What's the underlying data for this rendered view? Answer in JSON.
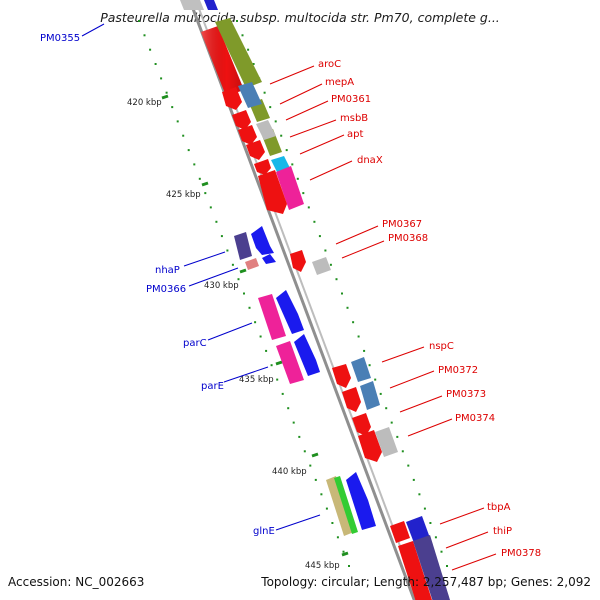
{
  "title": "Pasteurella multocida subsp. multocida str. Pm70, complete g...",
  "footer": {
    "accession_label": "Accession:",
    "accession": "NC_002663",
    "topology_label": "Topology:",
    "topology": "circular;",
    "length_label": "Length:",
    "length": "2,257,487 bp;",
    "genes_label": "Genes:",
    "genes": "2,092"
  },
  "colors": {
    "backbone": "#8f8f8f",
    "forward_label": "#0000cc",
    "reverse_label": "#dd0000",
    "tick": "#1f8f1f"
  },
  "kbp_ticks": [
    "420 kbp",
    "425 kbp",
    "430 kbp",
    "435 kbp",
    "440 kbp",
    "445 kbp"
  ],
  "forward_genes": [
    "PM0355",
    "nhaP",
    "PM0366",
    "parC",
    "parE",
    "glnE"
  ],
  "reverse_genes": [
    "aroC",
    "mepA",
    "PM0361",
    "msbB",
    "apt",
    "dnaX",
    "PM0367",
    "PM0368",
    "nspC",
    "PM0372",
    "PM0373",
    "PM0374",
    "tbpA",
    "thiP",
    "PM0378"
  ]
}
